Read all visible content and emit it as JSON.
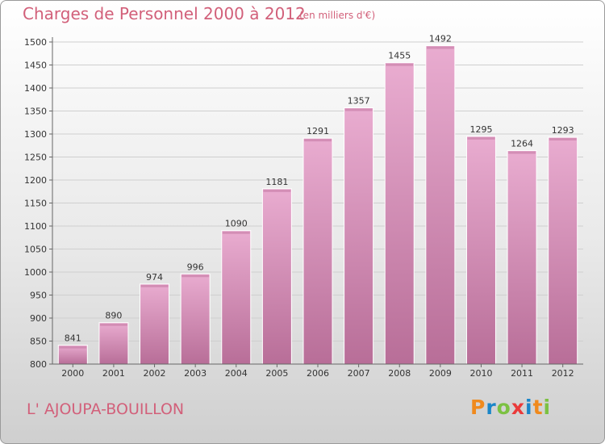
{
  "header": {
    "title": "Charges de Personnel 2000 à 2012",
    "subtitle": "(en milliers d'€)"
  },
  "footer": {
    "place": "L' AJOUPA-BOUILLON",
    "logo_letters": [
      "P",
      "r",
      "o",
      "x",
      "i",
      "t",
      "i"
    ],
    "logo_colors": [
      "#f08a1d",
      "#1a86c8",
      "#7cc142",
      "#ea3a3a",
      "#1a86c8",
      "#f08a1d",
      "#7cc142"
    ]
  },
  "colors": {
    "bar": "#d990bc",
    "bar_light": "#e9acd0",
    "bar_dark": "#c0789f",
    "text": "#d2607a",
    "axis_text": "#333333"
  },
  "chart_data": {
    "type": "bar",
    "categories": [
      "2000",
      "2001",
      "2002",
      "2003",
      "2004",
      "2005",
      "2006",
      "2007",
      "2008",
      "2009",
      "2010",
      "2011",
      "2012"
    ],
    "values": [
      841,
      890,
      974,
      996,
      1090,
      1181,
      1291,
      1357,
      1455,
      1492,
      1295,
      1264,
      1293
    ],
    "title": "Charges de Personnel 2000 à 2012",
    "subtitle": "(en milliers d'€)",
    "ylim": [
      800,
      1500
    ],
    "yticks": [
      800,
      850,
      900,
      950,
      1000,
      1050,
      1100,
      1150,
      1200,
      1250,
      1300,
      1350,
      1400,
      1450,
      1500
    ],
    "grid": true
  }
}
